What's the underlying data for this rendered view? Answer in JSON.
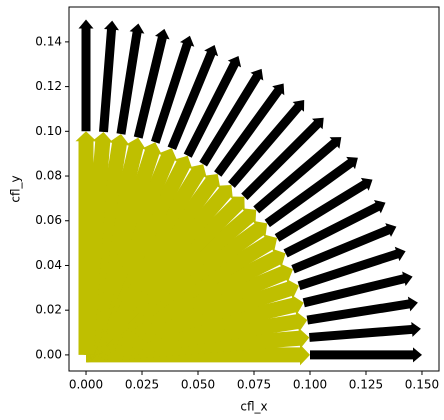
{
  "chart_data": {
    "type": "quiver",
    "x_label": "cfl_x",
    "y_label": "cfl_y",
    "xlim": [
      -0.0076,
      0.1576
    ],
    "ylim": [
      -0.0072,
      0.1556
    ],
    "xticks": [
      {
        "value": 0,
        "label": "0.000"
      },
      {
        "value": 0.025,
        "label": "0.025"
      },
      {
        "value": 0.05,
        "label": "0.050"
      },
      {
        "value": 0.075,
        "label": "0.075"
      },
      {
        "value": 0.1,
        "label": "0.100"
      },
      {
        "value": 0.125,
        "label": "0.125"
      },
      {
        "value": 0.15,
        "label": "0.150"
      }
    ],
    "yticks": [
      {
        "value": 0,
        "label": "0.00"
      },
      {
        "value": 0.02,
        "label": "0.02"
      },
      {
        "value": 0.04,
        "label": "0.04"
      },
      {
        "value": 0.06,
        "label": "0.06"
      },
      {
        "value": 0.08,
        "label": "0.08"
      },
      {
        "value": 0.1,
        "label": "0.10"
      },
      {
        "value": 0.12,
        "label": "0.12"
      },
      {
        "value": 0.14,
        "label": "0.14"
      }
    ],
    "series": [
      {
        "color": "#000000",
        "x": [
          0.1,
          0.0997,
          0.0988,
          0.0972,
          0.0951,
          0.0924,
          0.0891,
          0.0853,
          0.0809,
          0.076,
          0.0707,
          0.0649,
          0.0588,
          0.0523,
          0.0454,
          0.0383,
          0.0309,
          0.0233,
          0.0156,
          0.0078,
          0
        ],
        "y": [
          0,
          0.0078,
          0.0156,
          0.0233,
          0.0309,
          0.0383,
          0.0454,
          0.0523,
          0.0588,
          0.0649,
          0.0707,
          0.076,
          0.0809,
          0.0853,
          0.0891,
          0.0924,
          0.0951,
          0.0972,
          0.0988,
          0.0997,
          0.1
        ],
        "u": [
          0.05,
          0.0498,
          0.0494,
          0.0486,
          0.0476,
          0.0462,
          0.0446,
          0.0426,
          0.0405,
          0.038,
          0.0354,
          0.0325,
          0.0294,
          0.0261,
          0.0227,
          0.0191,
          0.0155,
          0.0117,
          0.0078,
          0.0039,
          0
        ],
        "v": [
          0,
          0.0039,
          0.0078,
          0.0117,
          0.0155,
          0.0191,
          0.0227,
          0.0261,
          0.0294,
          0.0325,
          0.0354,
          0.038,
          0.0405,
          0.0426,
          0.0446,
          0.0462,
          0.0476,
          0.0486,
          0.0494,
          0.0498,
          0.05
        ]
      },
      {
        "color": "#bfbf00",
        "x": [
          0,
          0,
          0,
          0,
          0,
          0,
          0,
          0,
          0,
          0,
          0,
          0,
          0,
          0,
          0,
          0,
          0,
          0,
          0,
          0,
          0
        ],
        "y": [
          0,
          0,
          0,
          0,
          0,
          0,
          0,
          0,
          0,
          0,
          0,
          0,
          0,
          0,
          0,
          0,
          0,
          0,
          0,
          0,
          0
        ],
        "u": [
          0.1,
          0.0997,
          0.0988,
          0.0972,
          0.0951,
          0.0924,
          0.0891,
          0.0853,
          0.0809,
          0.076,
          0.0707,
          0.0649,
          0.0588,
          0.0523,
          0.0454,
          0.0383,
          0.0309,
          0.0233,
          0.0156,
          0.0078,
          0
        ],
        "v": [
          0,
          0.0078,
          0.0156,
          0.0233,
          0.0309,
          0.0383,
          0.0454,
          0.0523,
          0.0588,
          0.0649,
          0.0707,
          0.076,
          0.0809,
          0.0853,
          0.0891,
          0.0924,
          0.0951,
          0.0972,
          0.0988,
          0.0997,
          0.1
        ]
      }
    ]
  }
}
